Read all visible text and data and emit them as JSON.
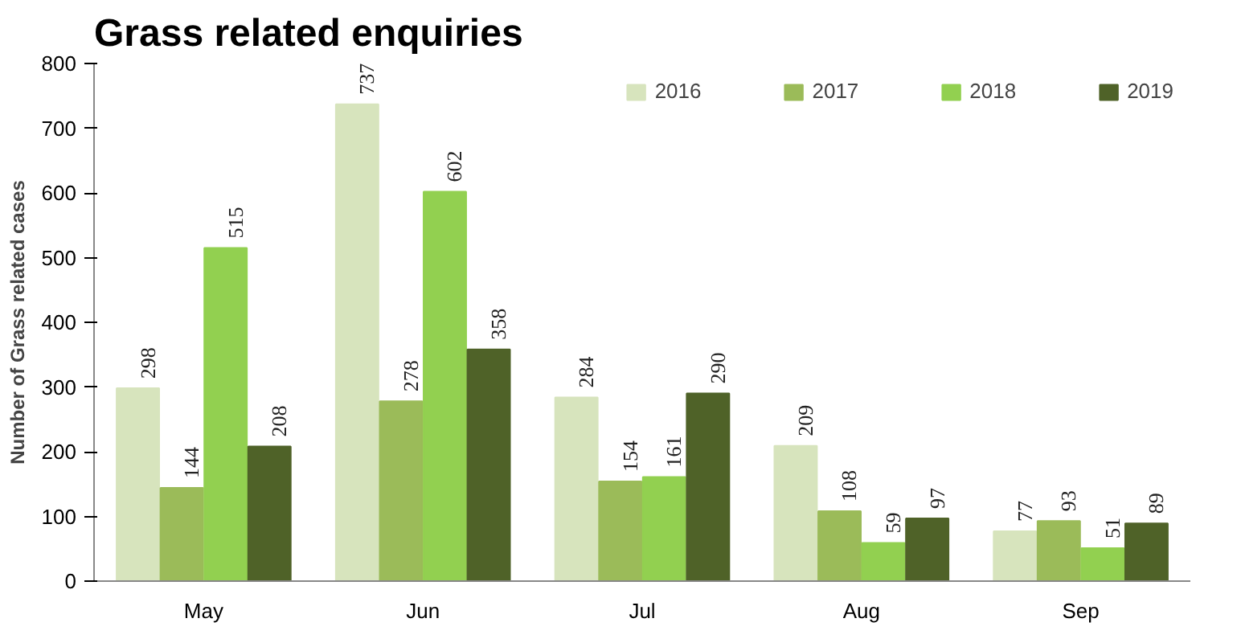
{
  "chart_data": {
    "type": "bar",
    "title": "Grass related enquiries",
    "ylabel": "Number of Grass related cases",
    "categories": [
      "May",
      "Jun",
      "Jul",
      "Aug",
      "Sep"
    ],
    "series": [
      {
        "name": "2016",
        "color": "#d7e4bd",
        "values": [
          298,
          737,
          284,
          209,
          77
        ]
      },
      {
        "name": "2017",
        "color": "#9bbb59",
        "values": [
          144,
          278,
          154,
          108,
          93
        ]
      },
      {
        "name": "2018",
        "color": "#92d050",
        "values": [
          515,
          602,
          161,
          59,
          51
        ]
      },
      {
        "name": "2019",
        "color": "#4f6228",
        "values": [
          208,
          358,
          290,
          97,
          89
        ]
      }
    ],
    "ylim": [
      0,
      800
    ],
    "yticks": [
      0,
      100,
      200,
      300,
      400,
      500,
      600,
      700,
      800
    ],
    "data_labels": true,
    "legend": "top right",
    "grid": false
  }
}
